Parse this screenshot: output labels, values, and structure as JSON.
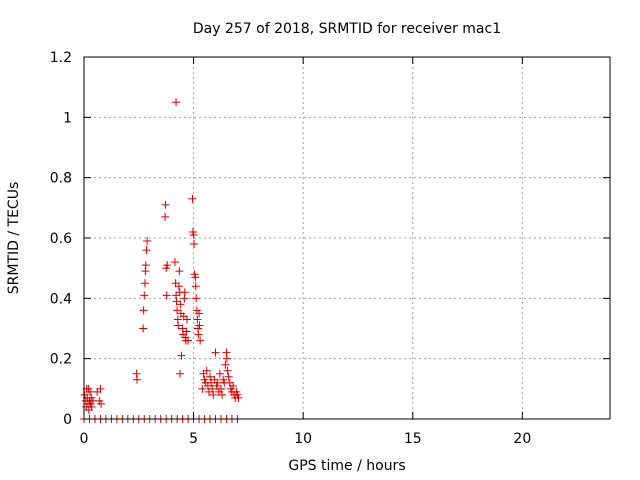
{
  "chart_data": {
    "type": "scatter",
    "title": "Day 257 of 2018, SRMTID for receiver mac1",
    "xlabel": "GPS time / hours",
    "ylabel": "SRMTID / TECUs",
    "xlim": [
      0,
      24
    ],
    "ylim": [
      0,
      1.2
    ],
    "x_ticks": [
      0,
      5,
      10,
      15,
      20
    ],
    "x_tick_labels": [
      "0",
      "5",
      "10",
      "15",
      "20"
    ],
    "y_ticks": [
      0,
      0.2,
      0.4,
      0.6,
      0.8,
      1.0,
      1.2
    ],
    "y_tick_labels": [
      "0",
      "0.2",
      "0.4",
      "0.6",
      "0.8",
      "1",
      "1.2"
    ],
    "grid": true,
    "marker": "plus",
    "series": [
      {
        "name": "SRMTID",
        "color": "#dd0000",
        "points": [
          [
            0.03,
            0.08
          ],
          [
            0.08,
            0.06
          ],
          [
            0.1,
            0.04
          ],
          [
            0.12,
            0.1
          ],
          [
            0.15,
            0.07
          ],
          [
            0.18,
            0.05
          ],
          [
            0.2,
            0.1
          ],
          [
            0.22,
            0.03
          ],
          [
            0.25,
            0.06
          ],
          [
            0.28,
            0.09
          ],
          [
            0.3,
            0.05
          ],
          [
            0.33,
            0.07
          ],
          [
            0.35,
            0.04
          ],
          [
            0.4,
            0.06
          ],
          [
            0.6,
            0.09
          ],
          [
            0.75,
            0.1
          ],
          [
            0.7,
            0.06
          ],
          [
            0.78,
            0.05
          ],
          [
            2.4,
            0.15
          ],
          [
            2.42,
            0.13
          ],
          [
            2.7,
            0.3
          ],
          [
            2.72,
            0.36
          ],
          [
            2.75,
            0.41
          ],
          [
            2.78,
            0.45
          ],
          [
            2.8,
            0.49
          ],
          [
            2.82,
            0.51
          ],
          [
            2.85,
            0.56
          ],
          [
            2.88,
            0.59
          ],
          [
            3.7,
            0.67
          ],
          [
            3.72,
            0.71
          ],
          [
            3.75,
            0.5
          ],
          [
            3.77,
            0.41
          ],
          [
            3.8,
            0.51
          ],
          [
            4.2,
            1.05
          ],
          [
            4.15,
            0.52
          ],
          [
            4.18,
            0.45
          ],
          [
            4.2,
            0.41
          ],
          [
            4.22,
            0.39
          ],
          [
            4.25,
            0.36
          ],
          [
            4.28,
            0.33
          ],
          [
            4.3,
            0.31
          ],
          [
            4.33,
            0.44
          ],
          [
            4.35,
            0.49
          ],
          [
            4.37,
            0.42
          ],
          [
            4.4,
            0.38
          ],
          [
            4.42,
            0.35
          ],
          [
            4.45,
            0.21
          ],
          [
            4.38,
            0.15
          ],
          [
            4.5,
            0.3
          ],
          [
            4.52,
            0.28
          ],
          [
            4.55,
            0.34
          ],
          [
            4.58,
            0.4
          ],
          [
            4.6,
            0.42
          ],
          [
            4.62,
            0.27
          ],
          [
            4.65,
            0.26
          ],
          [
            4.68,
            0.29
          ],
          [
            4.7,
            0.33
          ],
          [
            4.75,
            0.26
          ],
          [
            4.95,
            0.73
          ],
          [
            4.97,
            0.62
          ],
          [
            5.0,
            0.61
          ],
          [
            5.02,
            0.58
          ],
          [
            5.05,
            0.48
          ],
          [
            5.08,
            0.47
          ],
          [
            5.1,
            0.44
          ],
          [
            5.12,
            0.4
          ],
          [
            5.15,
            0.36
          ],
          [
            5.17,
            0.33
          ],
          [
            5.2,
            0.3
          ],
          [
            5.22,
            0.28
          ],
          [
            5.25,
            0.35
          ],
          [
            5.27,
            0.31
          ],
          [
            5.3,
            0.26
          ],
          [
            5.4,
            0.1
          ],
          [
            5.45,
            0.15
          ],
          [
            5.5,
            0.13
          ],
          [
            5.55,
            0.12
          ],
          [
            5.6,
            0.16
          ],
          [
            5.65,
            0.11
          ],
          [
            5.7,
            0.09
          ],
          [
            5.75,
            0.14
          ],
          [
            5.8,
            0.12
          ],
          [
            5.85,
            0.1
          ],
          [
            5.9,
            0.08
          ],
          [
            5.95,
            0.13
          ],
          [
            6.0,
            0.22
          ],
          [
            6.05,
            0.11
          ],
          [
            6.1,
            0.12
          ],
          [
            6.15,
            0.09
          ],
          [
            6.2,
            0.15
          ],
          [
            6.25,
            0.1
          ],
          [
            6.3,
            0.08
          ],
          [
            6.35,
            0.13
          ],
          [
            6.4,
            0.12
          ],
          [
            6.45,
            0.18
          ],
          [
            6.5,
            0.22
          ],
          [
            6.52,
            0.2
          ],
          [
            6.55,
            0.16
          ],
          [
            6.6,
            0.14
          ],
          [
            6.65,
            0.12
          ],
          [
            6.7,
            0.1
          ],
          [
            6.75,
            0.09
          ],
          [
            6.8,
            0.11
          ],
          [
            6.85,
            0.08
          ],
          [
            6.9,
            0.07
          ],
          [
            6.95,
            0.09
          ],
          [
            7.0,
            0.08
          ],
          [
            7.05,
            0.07
          ],
          [
            0.0,
            0.0
          ],
          [
            0.25,
            0.0
          ],
          [
            0.5,
            0.0
          ],
          [
            0.75,
            0.0
          ],
          [
            1.0,
            0.0
          ],
          [
            1.25,
            0.0
          ],
          [
            1.5,
            0.0
          ],
          [
            1.75,
            0.0
          ],
          [
            2.0,
            0.0
          ],
          [
            2.25,
            0.0
          ],
          [
            2.5,
            0.0
          ],
          [
            2.75,
            0.0
          ],
          [
            3.0,
            0.0
          ],
          [
            3.25,
            0.0
          ],
          [
            3.5,
            0.0
          ],
          [
            3.75,
            0.0
          ],
          [
            4.0,
            0.0
          ],
          [
            4.25,
            0.0
          ],
          [
            4.5,
            0.0
          ],
          [
            4.75,
            0.0
          ],
          [
            5.0,
            0.0
          ],
          [
            5.25,
            0.0
          ],
          [
            5.5,
            0.0
          ],
          [
            5.75,
            0.0
          ],
          [
            6.0,
            0.0
          ],
          [
            6.25,
            0.0
          ],
          [
            6.5,
            0.0
          ],
          [
            6.75,
            0.0
          ],
          [
            7.0,
            0.0
          ]
        ]
      }
    ]
  }
}
